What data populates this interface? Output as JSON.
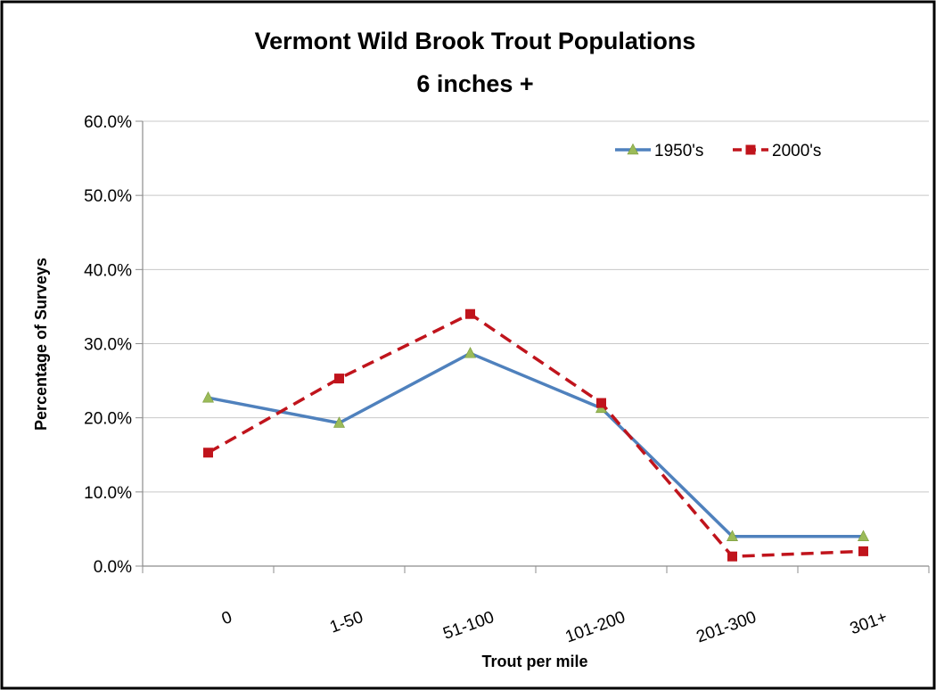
{
  "chart_data": {
    "type": "line",
    "title": "Vermont Wild Brook Trout Populations",
    "subtitle": "6 inches +",
    "xlabel": "Trout per mile",
    "ylabel": "Percentage of Surveys",
    "categories": [
      "0",
      "1-50",
      "51-100",
      "101-200",
      "201-300",
      "301+"
    ],
    "ylim": [
      0,
      60
    ],
    "yticks": [
      "0.0%",
      "10.0%",
      "20.0%",
      "30.0%",
      "40.0%",
      "50.0%",
      "60.0%"
    ],
    "grid": true,
    "legend_position": "top-right",
    "series": [
      {
        "name": "1950's",
        "values": [
          22.7,
          19.3,
          28.7,
          21.3,
          4.0,
          4.0
        ],
        "color": "#4f81bd",
        "marker_color": "#9bbb59",
        "marker": "triangle",
        "line": "solid"
      },
      {
        "name": "2000's",
        "values": [
          15.3,
          25.3,
          34.0,
          22.0,
          1.3,
          2.0
        ],
        "color": "#c0141c",
        "marker_color": "#c0141c",
        "marker": "square",
        "line": "dashed"
      }
    ]
  }
}
